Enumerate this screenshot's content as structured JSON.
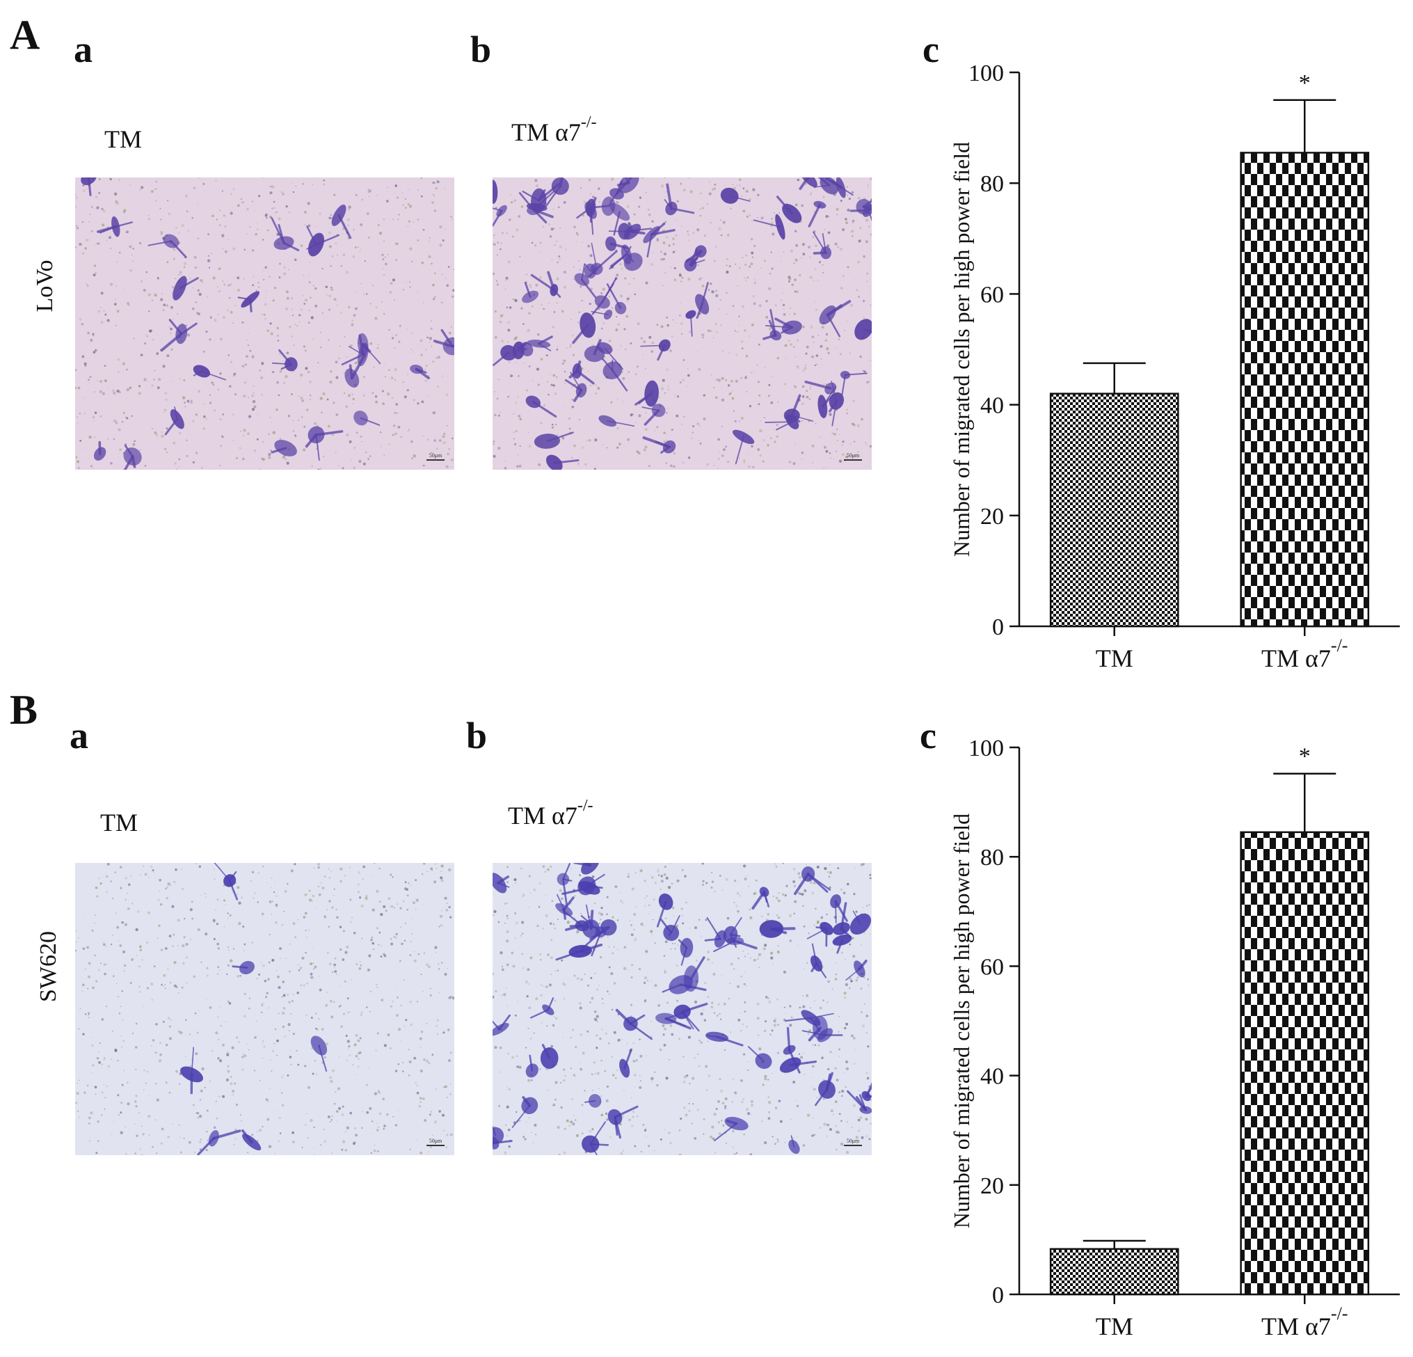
{
  "panels": [
    {
      "letter": "A",
      "row_label": "LoVo",
      "sub_a": {
        "letter": "a",
        "label": "TM",
        "scale_bar": "50μm"
      },
      "sub_b": {
        "letter": "b",
        "label": "TM α7",
        "label_sup": "-/-",
        "scale_bar": "50μm"
      },
      "sub_c": {
        "letter": "c"
      }
    },
    {
      "letter": "B",
      "row_label": "SW620",
      "sub_a": {
        "letter": "a",
        "label": "TM",
        "scale_bar": "50μm"
      },
      "sub_b": {
        "letter": "b",
        "label": "TM α7",
        "label_sup": "-/-",
        "scale_bar": "50μm"
      },
      "sub_c": {
        "letter": "c"
      }
    }
  ],
  "colors": {
    "lovo_background": "#e4d3e3",
    "sw620_background": "#e1e3f0",
    "lovo_cell": "#5a43a6",
    "sw620_cell": "#4a3fae",
    "bar_fill": "#111111"
  },
  "chart_data": [
    {
      "type": "bar",
      "categories": [
        "TM",
        "TM α7"
      ],
      "category_sup": [
        "",
        "-/-"
      ],
      "values": [
        42,
        85.5
      ],
      "error": [
        5.5,
        9.5
      ],
      "significance": [
        "",
        "*"
      ],
      "ylabel": "Number of migrated cells per high power field",
      "ylim": [
        0,
        100
      ],
      "yticks": [
        0,
        20,
        40,
        60,
        80,
        100
      ],
      "patterns": [
        "dense-check",
        "coarse-check"
      ]
    },
    {
      "type": "bar",
      "categories": [
        "TM",
        "TM α7"
      ],
      "category_sup": [
        "",
        "-/-"
      ],
      "values": [
        8.3,
        84.5
      ],
      "error": [
        1.5,
        10.7
      ],
      "significance": [
        "",
        "*"
      ],
      "ylabel": "Number of migrated cells per high power field",
      "ylim": [
        0,
        100
      ],
      "yticks": [
        0,
        20,
        40,
        60,
        80,
        100
      ],
      "patterns": [
        "dense-check",
        "coarse-check"
      ]
    }
  ]
}
